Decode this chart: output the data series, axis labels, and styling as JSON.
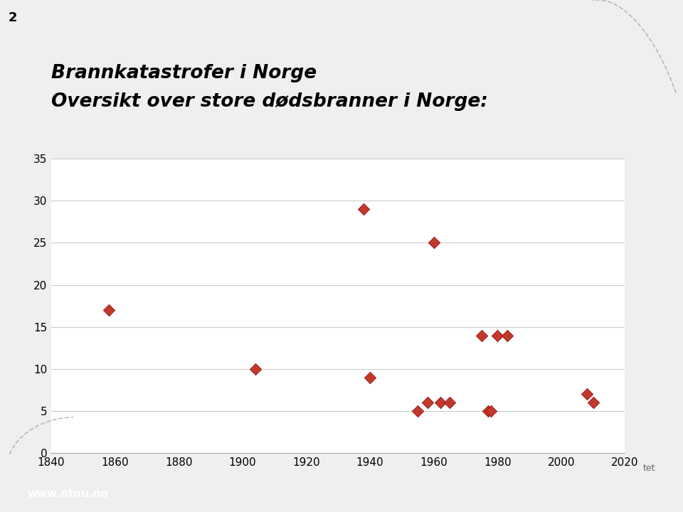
{
  "title_line1": "Brannkatastrofer i Norge",
  "title_line2": "Oversikt over store dødsbranner i Norge:",
  "slide_number": "2",
  "points": [
    [
      1858,
      17
    ],
    [
      1904,
      10
    ],
    [
      1938,
      29
    ],
    [
      1940,
      9
    ],
    [
      1955,
      5
    ],
    [
      1958,
      6
    ],
    [
      1960,
      25
    ],
    [
      1962,
      6
    ],
    [
      1965,
      6
    ],
    [
      1975,
      14
    ],
    [
      1977,
      5
    ],
    [
      1978,
      5
    ],
    [
      1980,
      14
    ],
    [
      1983,
      14
    ],
    [
      2008,
      7
    ],
    [
      2010,
      6
    ]
  ],
  "xlim": [
    1840,
    2020
  ],
  "ylim": [
    0,
    35
  ],
  "xticks": [
    1840,
    1860,
    1880,
    1900,
    1920,
    1940,
    1960,
    1980,
    2000,
    2020
  ],
  "yticks": [
    0,
    5,
    10,
    15,
    20,
    25,
    30,
    35
  ],
  "marker_color": "#c0392b",
  "marker_edge_color": "#8b0000",
  "bg_color": "#efefef",
  "plot_bg_color": "#ffffff",
  "footer_color": "#1a5a8a",
  "footer_text": "www.ntnu.no",
  "title_fontsize": 19,
  "tick_fontsize": 11,
  "slide_num_fontsize": 13
}
